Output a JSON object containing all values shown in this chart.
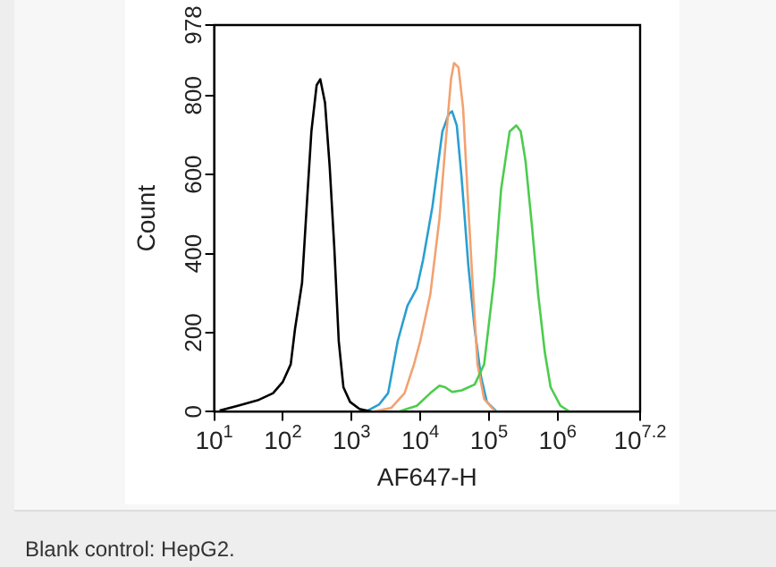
{
  "chart_data": {
    "type": "line",
    "xlabel": "AF647-H",
    "ylabel": "Count",
    "log": "x",
    "grid": false,
    "legend": false,
    "marker": "none",
    "line_style": "solid",
    "xlim": [
      10,
      15848932
    ],
    "ylim": [
      0,
      978
    ],
    "xticks": [
      {
        "value": 10,
        "label": "10$^{1}$"
      },
      {
        "value": 100,
        "label": "10$^{2}$"
      },
      {
        "value": 1000,
        "label": "10$^{3}$"
      },
      {
        "value": 10000,
        "label": "10$^{4}$"
      },
      {
        "value": 100000,
        "label": "10$^{5}$"
      },
      {
        "value": 1000000,
        "label": "10$^{6}$"
      },
      {
        "value": 15848932,
        "label": "10$^{7.2}$"
      }
    ],
    "yticks": [
      0,
      200,
      400,
      600,
      800,
      978
    ],
    "annotations": [
      "Blank control: HepG2."
    ],
    "series": [
      {
        "color": "#000000",
        "x": [
          12,
          22,
          43,
          72,
          100,
          130,
          150,
          190,
          230,
          260,
          310,
          350,
          410,
          480,
          560,
          650,
          760,
          950,
          1300,
          2000
        ],
        "values": [
          3,
          15,
          29,
          47,
          76,
          120,
          209,
          326,
          562,
          709,
          826,
          841,
          782,
          620,
          415,
          179,
          62,
          25,
          7,
          0
        ]
      },
      {
        "color": "#4ccc4c",
        "x": [
          4700,
          8900,
          14000,
          19000,
          23000,
          29000,
          40000,
          62000,
          85000,
          120000,
          150000,
          200000,
          250000,
          290000,
          340000,
          420000,
          520000,
          650000,
          790000,
          1100000,
          1500000
        ],
        "values": [
          0,
          15,
          47,
          66,
          62,
          50,
          54,
          69,
          120,
          341,
          562,
          709,
          724,
          709,
          635,
          474,
          297,
          150,
          62,
          15,
          0
        ]
      },
      {
        "color": "#f2a270",
        "x": [
          2000,
          3800,
          5900,
          8100,
          10000,
          14000,
          19000,
          23000,
          28000,
          31000,
          36000,
          42000,
          50000,
          59000,
          68000,
          85000,
          120000
        ],
        "values": [
          0,
          10,
          47,
          120,
          179,
          297,
          488,
          665,
          841,
          882,
          871,
          768,
          518,
          297,
          120,
          32,
          3
        ]
      },
      {
        "color": "#2a9fd0",
        "x": [
          1600,
          2500,
          3400,
          4700,
          6500,
          8900,
          11000,
          15000,
          21000,
          26000,
          29000,
          34000,
          40000,
          50000,
          62000,
          76000,
          93000,
          130000
        ],
        "values": [
          0,
          18,
          47,
          179,
          268,
          312,
          385,
          518,
          709,
          753,
          760,
          724,
          591,
          371,
          209,
          91,
          25,
          0
        ]
      }
    ]
  }
}
